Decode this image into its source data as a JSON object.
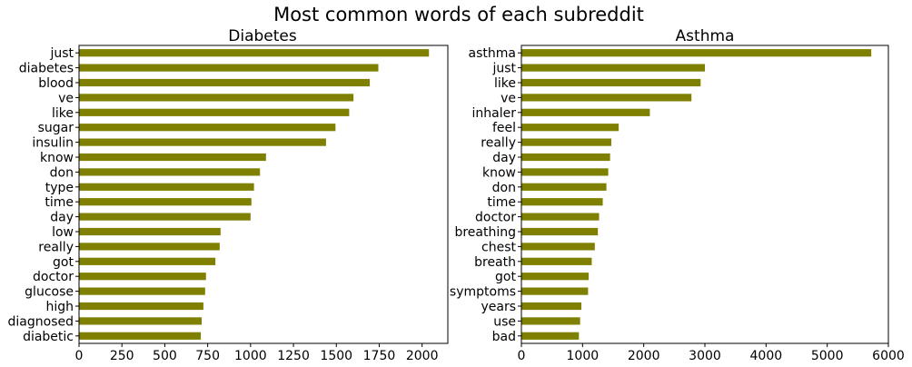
{
  "figure_title": "Most common words of each subreddit",
  "colors": {
    "bar": "#808000",
    "axis": "#000000",
    "background": "#ffffff"
  },
  "chart_data": [
    {
      "type": "bar",
      "orientation": "horizontal",
      "title": "Diabetes",
      "xlabel": "",
      "ylabel": "",
      "grid": false,
      "xlim": [
        0,
        2150
      ],
      "xticks": [
        0,
        250,
        500,
        750,
        1000,
        1250,
        1500,
        1750,
        2000
      ],
      "categories": [
        "just",
        "diabetes",
        "blood",
        "ve",
        "like",
        "sugar",
        "insulin",
        "know",
        "don",
        "type",
        "time",
        "day",
        "low",
        "really",
        "got",
        "doctor",
        "glucose",
        "high",
        "diagnosed",
        "diabetic"
      ],
      "values": [
        2040,
        1745,
        1695,
        1600,
        1575,
        1495,
        1440,
        1090,
        1055,
        1020,
        1005,
        1000,
        825,
        820,
        795,
        740,
        735,
        725,
        715,
        710
      ]
    },
    {
      "type": "bar",
      "orientation": "horizontal",
      "title": "Asthma",
      "xlabel": "",
      "ylabel": "",
      "grid": false,
      "xlim": [
        0,
        6000
      ],
      "xticks": [
        0,
        1000,
        2000,
        3000,
        4000,
        5000,
        6000
      ],
      "categories": [
        "asthma",
        "just",
        "like",
        "ve",
        "inhaler",
        "feel",
        "really",
        "day",
        "know",
        "don",
        "time",
        "doctor",
        "breathing",
        "chest",
        "breath",
        "got",
        "symptoms",
        "years",
        "use",
        "bad"
      ],
      "values": [
        5720,
        3000,
        2930,
        2780,
        2100,
        1590,
        1470,
        1450,
        1420,
        1390,
        1330,
        1270,
        1250,
        1200,
        1150,
        1100,
        1090,
        980,
        960,
        940
      ]
    }
  ]
}
